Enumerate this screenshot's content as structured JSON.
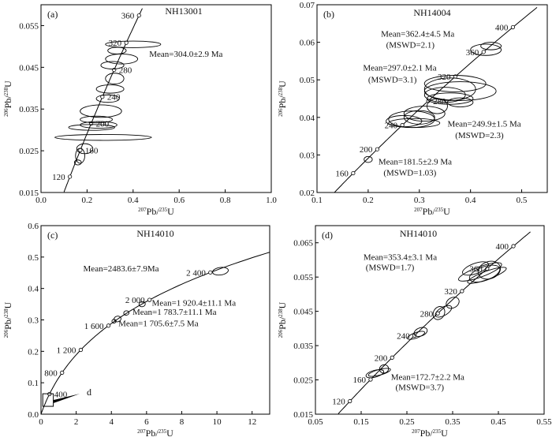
{
  "chart_data": [
    {
      "type": "scatter",
      "panel_label": "(a)",
      "title": "NH13001",
      "xlabel_pb": "207",
      "xlabel_tail": "Pb/",
      "xlabel_u": "235",
      "xlabel_end": "U",
      "ylabel_pb": "206",
      "ylabel_tail": "Pb/",
      "ylabel_u": "238",
      "ylabel_end": "U",
      "xlim": [
        0,
        1.0
      ],
      "ylim": [
        0.015,
        0.06
      ],
      "xticks": [
        0,
        0.2,
        0.4,
        0.6,
        0.8,
        1.0
      ],
      "xtick_labels": [
        "0.0",
        "0.2",
        "0.4",
        "0.6",
        "0.8",
        "1.0"
      ],
      "yticks": [
        0.015,
        0.025,
        0.035,
        0.045,
        0.055
      ],
      "ytick_labels": [
        "0.015",
        "0.025",
        "0.035",
        "0.045",
        "0.055"
      ],
      "concordia_range": [
        0.1,
        0.44
      ],
      "age_labels": [
        {
          "age": 120,
          "text": "120",
          "side": "left"
        },
        {
          "age": 160,
          "text": "160",
          "side": "right"
        },
        {
          "age": 200,
          "text": "200",
          "side": "right"
        },
        {
          "age": 240,
          "text": "240",
          "side": "right"
        },
        {
          "age": 280,
          "text": "280",
          "side": "right"
        },
        {
          "age": 320,
          "text": "320",
          "side": "left"
        },
        {
          "age": 360,
          "text": "360",
          "side": "left"
        }
      ],
      "ellipses": [
        {
          "x": 0.27,
          "y": 0.0282,
          "rx": 0.21,
          "ry": 0.0007,
          "rot": 0,
          "color": "#000000"
        },
        {
          "x": 0.22,
          "y": 0.0306,
          "rx": 0.1,
          "ry": 0.0007,
          "rot": 0,
          "color": "#000000"
        },
        {
          "x": 0.25,
          "y": 0.0312,
          "rx": 0.08,
          "ry": 0.0008,
          "rot": 0,
          "color": "#000000"
        },
        {
          "x": 0.19,
          "y": 0.0255,
          "rx": 0.035,
          "ry": 0.0012,
          "rot": 0,
          "color": "#000000"
        },
        {
          "x": 0.17,
          "y": 0.0238,
          "rx": 0.02,
          "ry": 0.0018,
          "rot": 0,
          "color": "#000000"
        },
        {
          "x": 0.16,
          "y": 0.0222,
          "rx": 0.015,
          "ry": 0.0006,
          "rot": 0,
          "color": "#000000"
        },
        {
          "x": 0.26,
          "y": 0.0345,
          "rx": 0.09,
          "ry": 0.0015,
          "rot": 0,
          "color": "#000000"
        },
        {
          "x": 0.3,
          "y": 0.0398,
          "rx": 0.06,
          "ry": 0.001,
          "rot": 0,
          "color": "#000000"
        },
        {
          "x": 0.29,
          "y": 0.0375,
          "rx": 0.05,
          "ry": 0.0009,
          "rot": 0,
          "color": "#000000"
        },
        {
          "x": 0.32,
          "y": 0.0423,
          "rx": 0.04,
          "ry": 0.0013,
          "rot": 0,
          "color": "#000000"
        },
        {
          "x": 0.35,
          "y": 0.047,
          "rx": 0.07,
          "ry": 0.0012,
          "rot": 0,
          "color": "#000000"
        },
        {
          "x": 0.4,
          "y": 0.0505,
          "rx": 0.12,
          "ry": 0.0008,
          "rot": 0,
          "color": "#000000"
        },
        {
          "x": 0.33,
          "y": 0.049,
          "rx": 0.04,
          "ry": 0.0008,
          "rot": 0,
          "color": "#000000"
        },
        {
          "x": 0.31,
          "y": 0.0455,
          "rx": 0.05,
          "ry": 0.0009,
          "rot": 0,
          "color": "#000000"
        },
        {
          "x": 0.24,
          "y": 0.0325,
          "rx": 0.07,
          "ry": 0.0008,
          "rot": 0,
          "color": "#000000"
        }
      ],
      "annotations": [
        {
          "text": "Mean=304.0±2.9 Ma",
          "x": 0.47,
          "y": 0.0475,
          "color": "#000000"
        }
      ]
    },
    {
      "type": "scatter",
      "panel_label": "(b)",
      "title": "NH14004",
      "xlabel_pb": "207",
      "xlabel_tail": "Pb/",
      "xlabel_u": "235",
      "xlabel_end": "U",
      "ylabel_pb": "206",
      "ylabel_tail": "Pb/",
      "ylabel_u": "238",
      "ylabel_end": "U",
      "xlim": [
        0.1,
        0.55
      ],
      "ylim": [
        0.02,
        0.07
      ],
      "xticks": [
        0.1,
        0.2,
        0.3,
        0.4,
        0.5
      ],
      "xtick_labels": [
        "0.1",
        "0.2",
        "0.3",
        "0.4",
        "0.5"
      ],
      "yticks": [
        0.02,
        0.03,
        0.04,
        0.05,
        0.06,
        0.07
      ],
      "ytick_labels": [
        "0.02",
        "0.03",
        "0.04",
        "0.05",
        "0.06",
        "0.07"
      ],
      "concordia_range": [
        0.13,
        0.53
      ],
      "age_labels": [
        {
          "age": 160,
          "text": "160",
          "side": "left"
        },
        {
          "age": 200,
          "text": "200",
          "side": "left"
        },
        {
          "age": 240,
          "text": "240",
          "side": "left"
        },
        {
          "age": 280,
          "text": "280",
          "side": "right"
        },
        {
          "age": 320,
          "text": "320",
          "side": "left"
        },
        {
          "age": 360,
          "text": "360",
          "side": "left"
        },
        {
          "age": 400,
          "text": "400",
          "side": "left"
        }
      ],
      "ellipses": [
        {
          "x": 0.285,
          "y": 0.0395,
          "rx": 0.045,
          "ry": 0.0022,
          "rot": 0,
          "color": "#000000"
        },
        {
          "x": 0.3,
          "y": 0.04,
          "rx": 0.03,
          "ry": 0.0018,
          "rot": 0,
          "color": "#000000"
        },
        {
          "x": 0.27,
          "y": 0.039,
          "rx": 0.035,
          "ry": 0.0015,
          "rot": 0,
          "color": "#000000"
        },
        {
          "x": 0.29,
          "y": 0.0385,
          "rx": 0.05,
          "ry": 0.0012,
          "rot": 0,
          "color": "#000000"
        },
        {
          "x": 0.31,
          "y": 0.041,
          "rx": 0.04,
          "ry": 0.002,
          "rot": 0,
          "color": "#000000"
        },
        {
          "x": 0.36,
          "y": 0.0475,
          "rx": 0.05,
          "ry": 0.003,
          "rot": 0,
          "color": "#000000"
        },
        {
          "x": 0.37,
          "y": 0.049,
          "rx": 0.06,
          "ry": 0.0022,
          "rot": 0,
          "color": "#000000"
        },
        {
          "x": 0.35,
          "y": 0.046,
          "rx": 0.04,
          "ry": 0.002,
          "rot": 0,
          "color": "#000000"
        },
        {
          "x": 0.38,
          "y": 0.047,
          "rx": 0.07,
          "ry": 0.0025,
          "rot": 0,
          "color": "#000000"
        },
        {
          "x": 0.36,
          "y": 0.045,
          "rx": 0.045,
          "ry": 0.0015,
          "rot": 0,
          "color": "#000000"
        },
        {
          "x": 0.43,
          "y": 0.058,
          "rx": 0.03,
          "ry": 0.0015,
          "rot": 0,
          "color": "#000000"
        },
        {
          "x": 0.44,
          "y": 0.059,
          "rx": 0.02,
          "ry": 0.001,
          "rot": 0,
          "color": "#000000"
        },
        {
          "x": 0.335,
          "y": 0.043,
          "rx": 0.02,
          "ry": 0.002,
          "rot": 0,
          "color": "#000000"
        },
        {
          "x": 0.2,
          "y": 0.0288,
          "rx": 0.008,
          "ry": 0.0008,
          "rot": 0,
          "color": "#000000"
        },
        {
          "x": 0.38,
          "y": 0.044,
          "rx": 0.025,
          "ry": 0.0012,
          "rot": 0,
          "color": "#000000"
        }
      ],
      "annotations": [
        {
          "text": "Mean=362.4±4.5 Ma",
          "x": 0.225,
          "y": 0.0615,
          "color": "#000000"
        },
        {
          "text": "(MSWD=2.1)",
          "x": 0.235,
          "y": 0.0585,
          "color": "#000000"
        },
        {
          "text": "Mean=297.0±2.1 Ma",
          "x": 0.19,
          "y": 0.0525,
          "color": "#000000"
        },
        {
          "text": "(MSWD=3.1)",
          "x": 0.2,
          "y": 0.0493,
          "color": "#000000"
        },
        {
          "text": "Mean=249.9±1.5 Ma",
          "x": 0.355,
          "y": 0.0375,
          "color": "#d7312d"
        },
        {
          "text": "(MSWD=2.3)",
          "x": 0.37,
          "y": 0.0345,
          "color": "#d7312d"
        },
        {
          "text": "Mean=181.5±2.9 Ma",
          "x": 0.22,
          "y": 0.0275,
          "color": "#d7312d"
        },
        {
          "text": "(MSWD=1.03)",
          "x": 0.23,
          "y": 0.0245,
          "color": "#d7312d"
        }
      ]
    },
    {
      "type": "scatter",
      "panel_label": "(c)",
      "title": "NH14010",
      "xlabel_pb": "207",
      "xlabel_tail": "Pb/",
      "xlabel_u": "235",
      "xlabel_end": "U",
      "ylabel_pb": "206",
      "ylabel_tail": "Pb/",
      "ylabel_u": "238",
      "ylabel_end": "U",
      "xlim": [
        0,
        13
      ],
      "ylim": [
        0,
        0.6
      ],
      "xticks": [
        0,
        2,
        4,
        6,
        8,
        10,
        12
      ],
      "xtick_labels": [
        "0",
        "2",
        "4",
        "6",
        "8",
        "10",
        "12"
      ],
      "yticks": [
        0,
        0.1,
        0.2,
        0.3,
        0.4,
        0.5,
        0.6
      ],
      "ytick_labels": [
        "0.0",
        "0.1",
        "0.2",
        "0.3",
        "0.4",
        "0.5",
        "0.6"
      ],
      "concordia_range": [
        0,
        13
      ],
      "age_labels": [
        {
          "age": 400,
          "text": "400",
          "side": "right"
        },
        {
          "age": 800,
          "text": "800",
          "side": "left"
        },
        {
          "age": 1200,
          "text": "1 200",
          "side": "left"
        },
        {
          "age": 1600,
          "text": "1 600",
          "side": "left"
        },
        {
          "age": 2000,
          "text": "2 000",
          "side": "left"
        },
        {
          "age": 2400,
          "text": "2 400",
          "side": "left"
        }
      ],
      "ellipses": [
        {
          "x": 10.2,
          "y": 0.455,
          "rx": 0.45,
          "ry": 0.012,
          "rot": -8,
          "color": "#000000"
        },
        {
          "x": 5.75,
          "y": 0.35,
          "rx": 0.18,
          "ry": 0.008,
          "rot": -10,
          "color": "#000000"
        },
        {
          "x": 4.85,
          "y": 0.322,
          "rx": 0.15,
          "ry": 0.007,
          "rot": -10,
          "color": "#000000"
        },
        {
          "x": 4.35,
          "y": 0.303,
          "rx": 0.2,
          "ry": 0.009,
          "rot": -10,
          "color": "#000000"
        },
        {
          "x": 4.15,
          "y": 0.296,
          "rx": 0.12,
          "ry": 0.006,
          "rot": -10,
          "color": "#000000"
        }
      ],
      "annotations": [
        {
          "text": "Mean=2483.6±7.9Ma",
          "x": 2.4,
          "y": 0.455,
          "color": "#000000"
        },
        {
          "text": "Mean=1 920.4±11.1 Ma",
          "x": 6.3,
          "y": 0.345,
          "color": "#000000"
        },
        {
          "text": "Mean=1 783.7±11.1 Ma",
          "x": 5.2,
          "y": 0.316,
          "color": "#000000"
        },
        {
          "text": "Mean=1 705.6±7.5 Ma",
          "x": 4.4,
          "y": 0.28,
          "color": "#000000"
        }
      ],
      "inset_label": "d"
    },
    {
      "type": "scatter",
      "panel_label": "(d)",
      "title": "NH14010",
      "xlabel_pb": "207",
      "xlabel_tail": "Pb/",
      "xlabel_u": "235",
      "xlabel_end": "U",
      "ylabel_pb": "206",
      "ylabel_tail": "Pb/",
      "ylabel_u": "238",
      "ylabel_end": "U",
      "xlim": [
        0.05,
        0.55
      ],
      "ylim": [
        0.015,
        0.07
      ],
      "xticks": [
        0.05,
        0.15,
        0.25,
        0.35,
        0.45,
        0.55
      ],
      "xtick_labels": [
        "0.05",
        "0.15",
        "0.25",
        "0.35",
        "0.45",
        "0.55"
      ],
      "yticks": [
        0.015,
        0.025,
        0.035,
        0.045,
        0.055,
        0.065
      ],
      "ytick_labels": [
        "0.015",
        "0.025",
        "0.035",
        "0.045",
        "0.055",
        "0.065"
      ],
      "concordia_range": [
        0.1,
        0.52
      ],
      "age_labels": [
        {
          "age": 120,
          "text": "120",
          "side": "left"
        },
        {
          "age": 160,
          "text": "160",
          "side": "left"
        },
        {
          "age": 200,
          "text": "200",
          "side": "left"
        },
        {
          "age": 240,
          "text": "240",
          "side": "left"
        },
        {
          "age": 280,
          "text": "280",
          "side": "left"
        },
        {
          "age": 320,
          "text": "320",
          "side": "left"
        },
        {
          "age": 360,
          "text": "360",
          "side": "left"
        },
        {
          "age": 400,
          "text": "400",
          "side": "left"
        }
      ],
      "ellipses": [
        {
          "x": 0.42,
          "y": 0.056,
          "rx": 0.035,
          "ry": 0.002,
          "rot": -20,
          "color": "#000000"
        },
        {
          "x": 0.41,
          "y": 0.0565,
          "rx": 0.05,
          "ry": 0.0015,
          "rot": -20,
          "color": "#000000"
        },
        {
          "x": 0.43,
          "y": 0.057,
          "rx": 0.025,
          "ry": 0.0025,
          "rot": -20,
          "color": "#000000"
        },
        {
          "x": 0.425,
          "y": 0.0555,
          "rx": 0.045,
          "ry": 0.0012,
          "rot": -20,
          "color": "#000000"
        },
        {
          "x": 0.4,
          "y": 0.0575,
          "rx": 0.03,
          "ry": 0.0015,
          "rot": -20,
          "color": "#000000"
        },
        {
          "x": 0.35,
          "y": 0.0475,
          "rx": 0.015,
          "ry": 0.0015,
          "rot": -30,
          "color": "#000000"
        },
        {
          "x": 0.33,
          "y": 0.045,
          "rx": 0.02,
          "ry": 0.0012,
          "rot": -30,
          "color": "#000000"
        },
        {
          "x": 0.32,
          "y": 0.0445,
          "rx": 0.012,
          "ry": 0.002,
          "rot": 30,
          "color": "#000000"
        },
        {
          "x": 0.28,
          "y": 0.039,
          "rx": 0.015,
          "ry": 0.0012,
          "rot": -20,
          "color": "#000000"
        },
        {
          "x": 0.27,
          "y": 0.038,
          "rx": 0.02,
          "ry": 0.0008,
          "rot": -20,
          "color": "#000000"
        },
        {
          "x": 0.19,
          "y": 0.0272,
          "rx": 0.025,
          "ry": 0.0008,
          "rot": -15,
          "color": "#000000"
        },
        {
          "x": 0.18,
          "y": 0.0268,
          "rx": 0.02,
          "ry": 0.001,
          "rot": -15,
          "color": "#000000"
        },
        {
          "x": 0.2,
          "y": 0.0282,
          "rx": 0.01,
          "ry": 0.0012,
          "rot": -15,
          "color": "#000000"
        }
      ],
      "annotations": [
        {
          "text": "Mean=353.4±3.1 Ma",
          "x": 0.155,
          "y": 0.06,
          "color": "#000000"
        },
        {
          "text": "(MSWD=1.7)",
          "x": 0.16,
          "y": 0.057,
          "color": "#000000"
        },
        {
          "text": "Mean=172.7±2.2 Ma",
          "x": 0.215,
          "y": 0.025,
          "color": "#d7312d"
        },
        {
          "text": "(MSWD=3.7)",
          "x": 0.225,
          "y": 0.022,
          "color": "#d7312d"
        }
      ]
    }
  ]
}
